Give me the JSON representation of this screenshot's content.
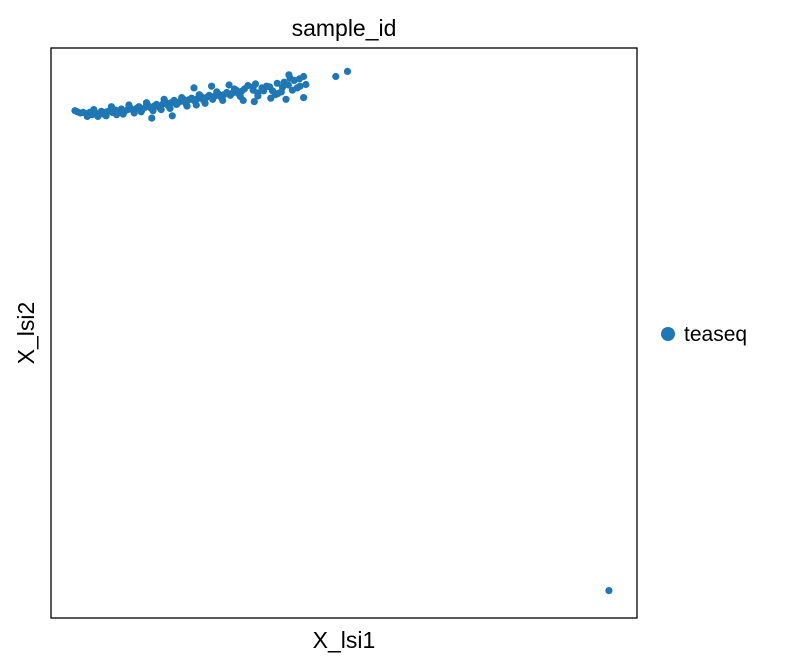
{
  "chart_data": {
    "type": "scatter",
    "title": "sample_id",
    "xlabel": "X_lsi1",
    "ylabel": "X_lsi2",
    "xlim": [
      0,
      100
    ],
    "ylim": [
      0,
      100
    ],
    "ticks_visible": false,
    "grid": false,
    "legend": {
      "placement": "right",
      "entries": [
        "teaseq"
      ]
    },
    "series": [
      {
        "name": "teaseq",
        "color": "#1f77b4",
        "points": [
          [
            4.1,
            89.0
          ],
          [
            4.5,
            88.8
          ],
          [
            5.0,
            88.6
          ],
          [
            5.5,
            88.7
          ],
          [
            6.0,
            88.5
          ],
          [
            6.6,
            88.7
          ],
          [
            7.0,
            88.3
          ],
          [
            7.5,
            88.6
          ],
          [
            8.1,
            88.5
          ],
          [
            8.6,
            88.9
          ],
          [
            9.0,
            88.4
          ],
          [
            9.5,
            88.8
          ],
          [
            10.0,
            89.0
          ],
          [
            10.5,
            88.7
          ],
          [
            11.0,
            89.1
          ],
          [
            11.6,
            88.9
          ],
          [
            12.0,
            89.3
          ],
          [
            12.5,
            88.8
          ],
          [
            13.1,
            89.2
          ],
          [
            13.5,
            89.5
          ],
          [
            14.0,
            89.1
          ],
          [
            14.6,
            89.4
          ],
          [
            15.0,
            89.7
          ],
          [
            15.5,
            89.2
          ],
          [
            16.1,
            89.6
          ],
          [
            16.5,
            90.0
          ],
          [
            17.0,
            89.5
          ],
          [
            17.6,
            89.8
          ],
          [
            18.0,
            90.1
          ],
          [
            18.5,
            89.6
          ],
          [
            19.1,
            90.2
          ],
          [
            19.5,
            90.5
          ],
          [
            20.0,
            89.9
          ],
          [
            20.5,
            90.4
          ],
          [
            21.0,
            90.8
          ],
          [
            21.5,
            90.2
          ],
          [
            22.0,
            90.6
          ],
          [
            22.6,
            91.0
          ],
          [
            23.0,
            90.3
          ],
          [
            23.5,
            90.9
          ],
          [
            24.0,
            91.2
          ],
          [
            24.5,
            90.7
          ],
          [
            25.0,
            91.1
          ],
          [
            25.6,
            91.5
          ],
          [
            26.0,
            90.9
          ],
          [
            26.5,
            91.3
          ],
          [
            27.0,
            91.7
          ],
          [
            27.6,
            91.0
          ],
          [
            28.0,
            91.6
          ],
          [
            28.5,
            92.0
          ],
          [
            29.0,
            91.4
          ],
          [
            29.5,
            91.8
          ],
          [
            30.0,
            92.2
          ],
          [
            30.6,
            91.7
          ],
          [
            31.0,
            92.1
          ],
          [
            31.6,
            92.6
          ],
          [
            32.0,
            92.0
          ],
          [
            32.5,
            92.4
          ],
          [
            33.0,
            92.8
          ],
          [
            6.2,
            88.0
          ],
          [
            8.0,
            88.0
          ],
          [
            11.2,
            88.3
          ],
          [
            14.2,
            88.6
          ],
          [
            17.4,
            89.0
          ],
          [
            20.3,
            89.4
          ],
          [
            23.2,
            89.8
          ],
          [
            26.3,
            90.3
          ],
          [
            29.3,
            90.8
          ],
          [
            32.3,
            91.5
          ],
          [
            7.3,
            89.2
          ],
          [
            10.3,
            89.7
          ],
          [
            13.3,
            90.0
          ],
          [
            16.3,
            90.4
          ],
          [
            19.3,
            91.0
          ],
          [
            22.3,
            91.3
          ],
          [
            25.3,
            91.8
          ],
          [
            28.3,
            92.3
          ],
          [
            31.3,
            92.8
          ],
          [
            17.2,
            87.7
          ],
          [
            20.7,
            88.1
          ],
          [
            24.4,
            93.0
          ],
          [
            27.4,
            93.3
          ],
          [
            30.4,
            93.5
          ],
          [
            33.6,
            93.4
          ],
          [
            34.5,
            92.6
          ],
          [
            35.3,
            92.1
          ],
          [
            36.0,
            93.0
          ],
          [
            36.8,
            93.3
          ],
          [
            37.8,
            92.5
          ],
          [
            38.6,
            93.8
          ],
          [
            39.5,
            93.1
          ],
          [
            32.8,
            90.8
          ],
          [
            34.7,
            90.6
          ],
          [
            37.5,
            91.2
          ],
          [
            38.7,
            92.0
          ],
          [
            40.1,
            91.0
          ],
          [
            40.8,
            94.7
          ],
          [
            41.5,
            94.3
          ],
          [
            39.8,
            94.0
          ],
          [
            43.5,
            93.6
          ],
          [
            41.2,
            92.6
          ],
          [
            40.5,
            93.5
          ],
          [
            34.5,
            93.2
          ],
          [
            35.3,
            91.6
          ],
          [
            36.3,
            92.5
          ],
          [
            37.3,
            93.2
          ],
          [
            38.3,
            91.8
          ],
          [
            39.3,
            92.3
          ],
          [
            42.0,
            93.0
          ],
          [
            42.5,
            93.3
          ],
          [
            21.4,
            90.1
          ],
          [
            24.8,
            90.0
          ],
          [
            18.8,
            89.2
          ],
          [
            15.4,
            88.8
          ],
          [
            12.3,
            88.4
          ],
          [
            9.4,
            88.1
          ],
          [
            43.1,
            95.0
          ],
          [
            42.4,
            94.6
          ],
          [
            34.9,
            93.7
          ],
          [
            40.6,
            95.3
          ],
          [
            43.1,
            91.3
          ],
          [
            48.6,
            95.0
          ],
          [
            50.6,
            95.9
          ],
          [
            95.2,
            4.8
          ]
        ]
      }
    ]
  }
}
